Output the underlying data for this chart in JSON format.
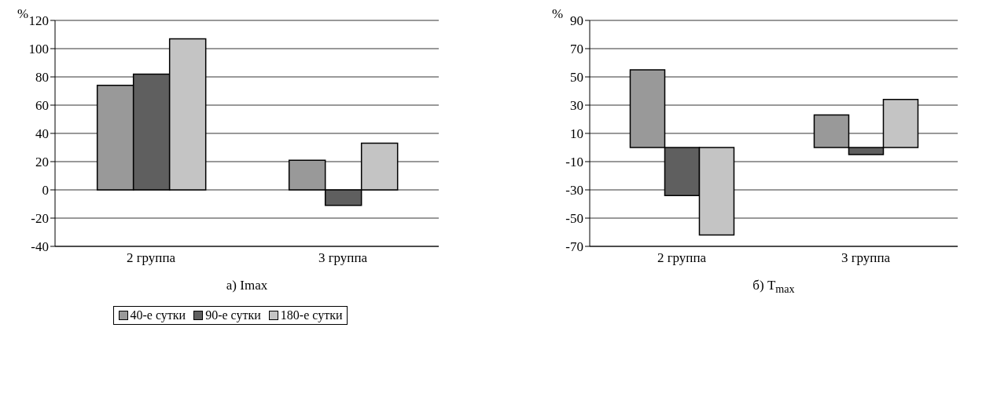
{
  "chart_data": [
    {
      "type": "bar",
      "title": "а) Imax",
      "ylabel": "%",
      "categories": [
        "2 группа",
        "3 группа"
      ],
      "series": [
        {
          "name": "40-е сутки",
          "color": "#999999",
          "values": [
            74,
            21
          ]
        },
        {
          "name": "90-е сутки",
          "color": "#5f5f5f",
          "values": [
            82,
            -11
          ]
        },
        {
          "name": "180-е сутки",
          "color": "#c4c4c4",
          "values": [
            107,
            33
          ]
        }
      ],
      "ylim": [
        -40,
        120
      ],
      "yticks": [
        -40,
        -20,
        0,
        20,
        40,
        60,
        80,
        100,
        120
      ],
      "grid": "y",
      "legend": "bottom"
    },
    {
      "type": "bar",
      "title": "б) T$_{max}$",
      "ylabel": "%",
      "categories": [
        "2 группа",
        "3 группа"
      ],
      "series": [
        {
          "color": "#999999",
          "values": [
            55,
            23
          ]
        },
        {
          "color": "#5f5f5f",
          "values": [
            -34,
            -5
          ]
        },
        {
          "color": "#c4c4c4",
          "values": [
            -62,
            34
          ]
        }
      ],
      "ylim": [
        -70,
        90
      ],
      "yticks": [
        -70,
        -50,
        -30,
        -10,
        10,
        30,
        50,
        70,
        90
      ],
      "grid": "y",
      "legend": false
    }
  ]
}
